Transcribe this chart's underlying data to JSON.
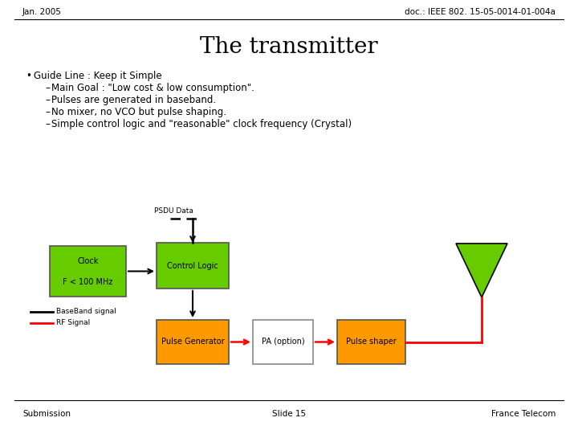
{
  "title": "The transmitter",
  "header_left": "Jan. 2005",
  "header_right": "doc.: IEEE 802. 15-05-0014-01-004a",
  "footer_left": "Submission",
  "footer_center": "Slide 15",
  "footer_right": "France Telecom",
  "bullet_text": "Guide Line : Keep it Simple",
  "sub_bullets": [
    "Main Goal : \"Low cost & low consumption\".",
    "Pulses are generated in baseband.",
    "No mixer, no VCO but pulse shaping.",
    "Simple control logic and \"reasonable\" clock frequency (Crystal)"
  ],
  "psdu_label": "PSDU Data",
  "clock_line1": "Clock",
  "clock_line2": "F < 100 MHz",
  "control_logic_label": "Control Logic",
  "pulse_gen_label": "Pulse Generator",
  "pa_label": "PA (option)",
  "pulse_shaper_label": "Pulse shaper",
  "legend_bb": "BaseBand signal",
  "legend_rf": "RF Signal",
  "green_color": "#66cc00",
  "orange_color": "#ff9900",
  "white_color": "#ffffff",
  "gray_border": "#888888",
  "dark_border": "#555555",
  "bg_color": "#ffffff",
  "text_color": "#000000",
  "header_fontsize": 7.5,
  "title_fontsize": 20,
  "bullet_fontsize": 8.5,
  "diagram_fontsize": 7,
  "footer_fontsize": 7.5
}
